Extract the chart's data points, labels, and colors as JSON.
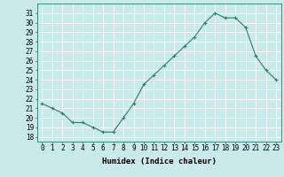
{
  "x": [
    0,
    1,
    2,
    3,
    4,
    5,
    6,
    7,
    8,
    9,
    10,
    11,
    12,
    13,
    14,
    15,
    16,
    17,
    18,
    19,
    20,
    21,
    22,
    23
  ],
  "y": [
    21.5,
    21.0,
    20.5,
    19.5,
    19.5,
    19.0,
    18.5,
    18.5,
    20.0,
    21.5,
    23.5,
    24.5,
    25.5,
    26.5,
    27.5,
    28.5,
    30.0,
    31.0,
    30.5,
    30.5,
    29.5,
    26.5,
    25.0,
    24.0
  ],
  "line_color": "#2e7d6e",
  "marker": "+",
  "bg_color": "#c8eaea",
  "grid_color": "#ffffff",
  "xlabel": "Humidex (Indice chaleur)",
  "ylabel": "",
  "xlim": [
    -0.5,
    23.5
  ],
  "ylim": [
    17.5,
    32.0
  ],
  "yticks": [
    18,
    19,
    20,
    21,
    22,
    23,
    24,
    25,
    26,
    27,
    28,
    29,
    30,
    31
  ],
  "xticks": [
    0,
    1,
    2,
    3,
    4,
    5,
    6,
    7,
    8,
    9,
    10,
    11,
    12,
    13,
    14,
    15,
    16,
    17,
    18,
    19,
    20,
    21,
    22,
    23
  ],
  "xlabel_fontsize": 6.5,
  "tick_fontsize": 5.5
}
